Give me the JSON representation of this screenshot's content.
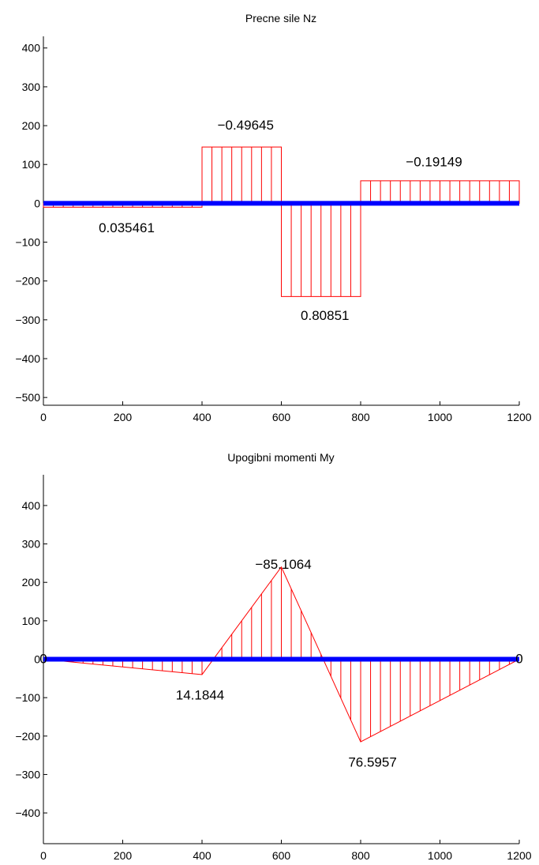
{
  "chart_data": [
    {
      "type": "area",
      "title": "Precne sile Nz",
      "xlim": [
        0,
        1200
      ],
      "ylim": [
        -520,
        430
      ],
      "x_ticks": [
        0,
        200,
        400,
        600,
        800,
        1000,
        1200
      ],
      "y_ticks": [
        -500,
        -400,
        -300,
        -200,
        -100,
        0,
        100,
        200,
        300,
        400
      ],
      "beam": [
        0,
        1200
      ],
      "shape": "step",
      "segments": [
        {
          "x0": 0,
          "x1": 400,
          "y": -10,
          "hatch_count": 16
        },
        {
          "x0": 400,
          "x1": 600,
          "y": 145,
          "hatch_count": 8
        },
        {
          "x0": 600,
          "x1": 800,
          "y": -240,
          "hatch_count": 8
        },
        {
          "x0": 800,
          "x1": 1200,
          "y": 58,
          "hatch_count": 16
        }
      ],
      "annotations": [
        {
          "text": "0.035461",
          "x": 210,
          "y": -75,
          "anchor": "middle"
        },
        {
          "text": "−0.49645",
          "x": 510,
          "y": 190,
          "anchor": "middle"
        },
        {
          "text": "0.80851",
          "x": 710,
          "y": -300,
          "anchor": "middle"
        },
        {
          "text": "−0.19149",
          "x": 985,
          "y": 95,
          "anchor": "middle"
        }
      ],
      "grid": false
    },
    {
      "type": "area",
      "title": "Upogibni momenti My",
      "xlim": [
        0,
        1200
      ],
      "ylim": [
        -480,
        480
      ],
      "x_ticks": [
        0,
        200,
        400,
        600,
        800,
        1000,
        1200
      ],
      "y_ticks": [
        -400,
        -300,
        -200,
        -100,
        0,
        100,
        200,
        300,
        400
      ],
      "beam": [
        0,
        1200
      ],
      "shape": "polyline",
      "points": [
        [
          0,
          0
        ],
        [
          400,
          -40
        ],
        [
          600,
          240
        ],
        [
          800,
          -215
        ],
        [
          1200,
          0
        ]
      ],
      "hatch_count": 48,
      "annotations": [
        {
          "text": "14.1844",
          "x": 395,
          "y": -105,
          "anchor": "middle"
        },
        {
          "text": "−85.1064",
          "x": 605,
          "y": 235,
          "anchor": "middle"
        },
        {
          "text": "76.5957",
          "x": 830,
          "y": -280,
          "anchor": "middle"
        },
        {
          "text": "0",
          "x": 0,
          "y": -10,
          "anchor": "middle"
        },
        {
          "text": "0",
          "x": 1200,
          "y": -10,
          "anchor": "middle"
        }
      ],
      "grid": false
    }
  ]
}
